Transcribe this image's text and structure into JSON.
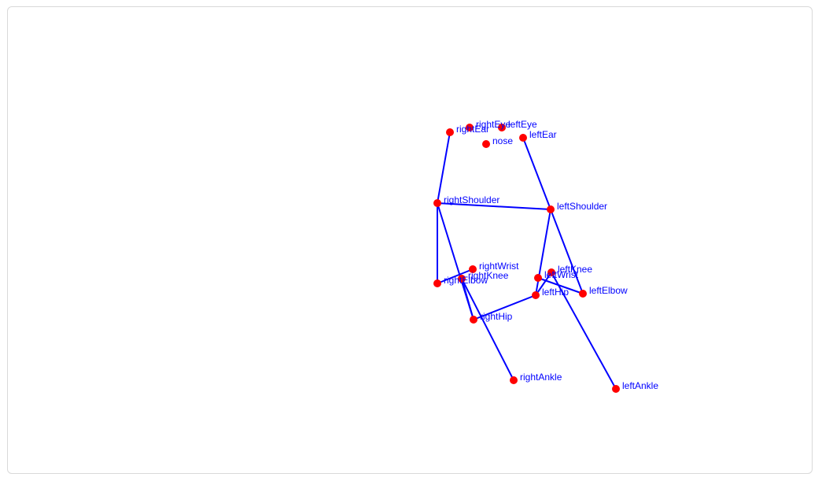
{
  "colors": {
    "edge": "#0000ff",
    "point": "#ff0000",
    "label": "#0000ff"
  },
  "keypoints": [
    {
      "id": "nose",
      "label": "nose"
    },
    {
      "id": "leftEye",
      "label": "leftEye"
    },
    {
      "id": "rightEye",
      "label": "rightEye"
    },
    {
      "id": "leftEar",
      "label": "leftEar"
    },
    {
      "id": "rightEar",
      "label": "rightEar"
    },
    {
      "id": "leftShoulder",
      "label": "leftShoulder"
    },
    {
      "id": "rightShoulder",
      "label": "rightShoulder"
    },
    {
      "id": "leftElbow",
      "label": "leftElbow"
    },
    {
      "id": "rightElbow",
      "label": "rightElbow"
    },
    {
      "id": "leftWrist",
      "label": "leftWrist"
    },
    {
      "id": "rightWrist",
      "label": "rightWrist"
    },
    {
      "id": "leftHip",
      "label": "leftHip"
    },
    {
      "id": "rightHip",
      "label": "rightHip"
    },
    {
      "id": "leftKnee",
      "label": "leftKnee"
    },
    {
      "id": "rightKnee",
      "label": "rightKnee"
    },
    {
      "id": "leftAnkle",
      "label": "leftAnkle"
    },
    {
      "id": "rightAnkle",
      "label": "rightAnkle"
    }
  ],
  "connections": [
    [
      "rightEar",
      "rightShoulder"
    ],
    [
      "leftEar",
      "leftShoulder"
    ],
    [
      "rightShoulder",
      "leftShoulder"
    ],
    [
      "rightShoulder",
      "rightElbow"
    ],
    [
      "rightElbow",
      "rightWrist"
    ],
    [
      "leftShoulder",
      "leftElbow"
    ],
    [
      "leftElbow",
      "leftWrist"
    ],
    [
      "rightShoulder",
      "rightHip"
    ],
    [
      "leftShoulder",
      "leftHip"
    ],
    [
      "rightHip",
      "leftHip"
    ],
    [
      "rightHip",
      "rightKnee"
    ],
    [
      "rightKnee",
      "rightAnkle"
    ],
    [
      "leftHip",
      "leftKnee"
    ],
    [
      "leftKnee",
      "leftAnkle"
    ]
  ]
}
